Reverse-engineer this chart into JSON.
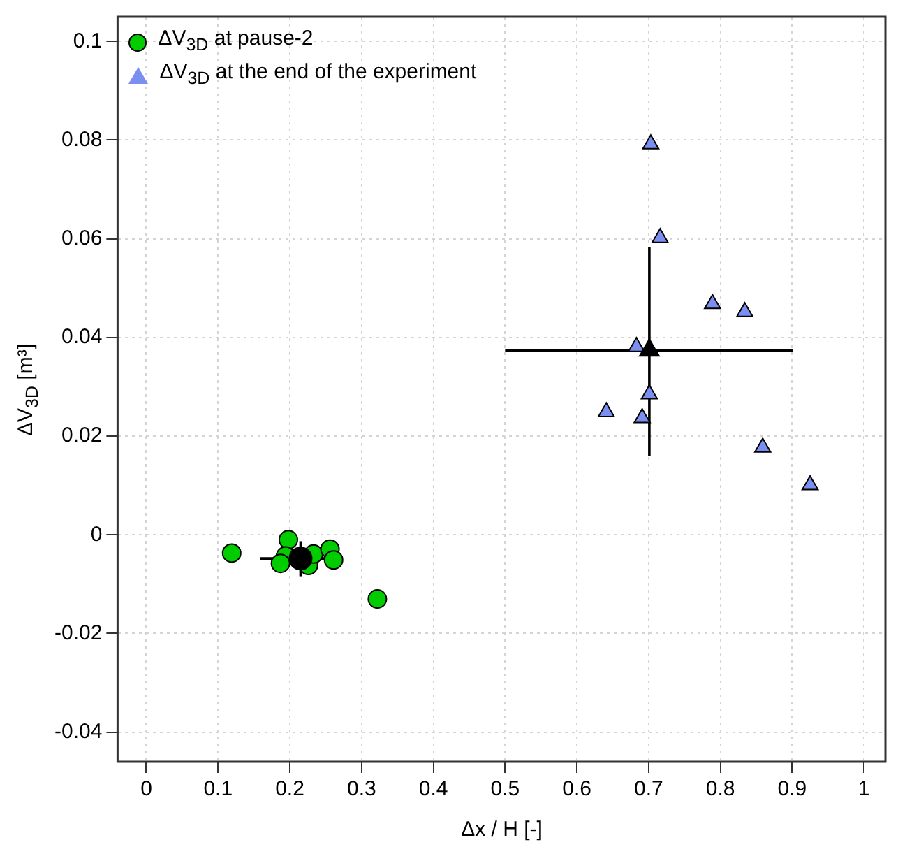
{
  "chart_data": {
    "type": "scatter",
    "xlabel": "Δx / H [-]",
    "ylabel": "ΔV$_{3D}$ [m³]",
    "xlim": [
      -0.04,
      1.03
    ],
    "ylim": [
      -0.046,
      0.105
    ],
    "xticks": [
      0,
      0.1,
      0.2,
      0.3,
      0.4,
      0.5,
      0.6,
      0.7,
      0.8,
      0.9,
      1
    ],
    "yticks": [
      -0.04,
      -0.02,
      0,
      0.02,
      0.04,
      0.06,
      0.08,
      0.1
    ],
    "grid": true,
    "legend": "top left",
    "series": [
      {
        "name": "ΔV$_{3D}$ at pause-2",
        "color": "#00cc00",
        "marker": "circle",
        "x": [
          0.119,
          0.198,
          0.194,
          0.187,
          0.226,
          0.233,
          0.256,
          0.261,
          0.322
        ],
        "values": [
          -0.0037,
          -0.001,
          -0.0043,
          -0.0058,
          -0.0062,
          -0.0039,
          -0.0029,
          -0.0051,
          -0.013
        ]
      },
      {
        "name": "ΔV$_{3D}$ at the end of the experiment",
        "color": "#7b8ff0",
        "marker": "triangle",
        "x": [
          0.703,
          0.716,
          0.789,
          0.834,
          0.683,
          0.701,
          0.641,
          0.691,
          0.859,
          0.925
        ],
        "values": [
          0.0792,
          0.0602,
          0.0468,
          0.0452,
          0.0381,
          0.0285,
          0.0249,
          0.0237,
          0.0177,
          0.0101
        ]
      },
      {
        "color": "#000000",
        "marker": "circle",
        "x": [
          0.215
        ],
        "values": [
          -0.0048
        ],
        "errors": [
          [
            -0.0084,
            -0.0013
          ]
        ],
        "xerrors": [
          [
            0.159,
            0.27
          ]
        ]
      },
      {
        "color": "#000000",
        "marker": "triangle",
        "x": [
          0.701
        ],
        "values": [
          0.0374
        ],
        "errors": [
          [
            0.016,
            0.0583
          ]
        ],
        "xerrors": [
          [
            0.5,
            0.901
          ]
        ]
      }
    ]
  }
}
